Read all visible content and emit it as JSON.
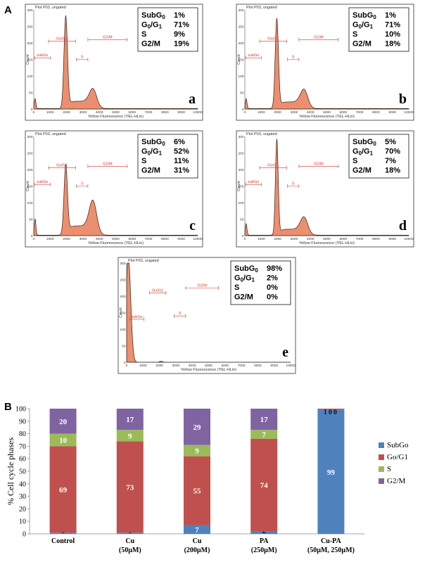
{
  "panel_a_label": "A",
  "panel_b_label": "B",
  "colors": {
    "histogram_fill": "#eb8f70",
    "gate": "#d9342b",
    "subgo": "#4f81bd",
    "go_g1": "#c0504d",
    "s": "#9bbb59",
    "g2m": "#8064a2"
  },
  "histograms": [
    {
      "letter": "a",
      "plot_title": "Plot P03, ungated",
      "x_label": "Yellow Fluorescence (YEL-HLin)",
      "y_label": "Count",
      "y_ticks": [
        "0",
        "50",
        "100",
        "150",
        "200",
        "250",
        "300"
      ],
      "x_ticks": [
        "0",
        "1000",
        "2000",
        "3000",
        "4000",
        "5000",
        "6000",
        "7000",
        "8000",
        "9000",
        "10000"
      ],
      "gates": [
        "subGo",
        "Go/G1",
        "S",
        "G2/M"
      ],
      "stats": [
        {
          "label": "SubG0",
          "value": "1%"
        },
        {
          "label": "G0/G1",
          "value": "71%"
        },
        {
          "label": "S",
          "value": "9%"
        },
        {
          "label": "G2/M",
          "value": "19%"
        }
      ]
    },
    {
      "letter": "b",
      "plot_title": "Plot P03, ungated",
      "x_label": "Yellow Fluorescence (YEL-HLin)",
      "y_label": "Count",
      "y_ticks": [
        "0",
        "50",
        "100",
        "150",
        "200",
        "250",
        "300"
      ],
      "x_ticks": [
        "0",
        "1000",
        "2000",
        "3000",
        "4000",
        "5000",
        "6000",
        "7000",
        "8000",
        "9000",
        "10000"
      ],
      "gates": [
        "subGo",
        "Go/G1",
        "S",
        "G2/M"
      ],
      "stats": [
        {
          "label": "SubG0",
          "value": "1%"
        },
        {
          "label": "G0/G1",
          "value": "71%"
        },
        {
          "label": "S",
          "value": "10%"
        },
        {
          "label": "G2/M",
          "value": "18%"
        }
      ]
    },
    {
      "letter": "c",
      "plot_title": "Plot P03, ungated",
      "x_label": "Yellow Fluorescence (YEL-HLin)",
      "y_label": "Count",
      "y_ticks": [
        "0",
        "50",
        "100",
        "150",
        "200",
        "250",
        "300"
      ],
      "x_ticks": [
        "0",
        "1000",
        "2000",
        "3000",
        "4000",
        "5000",
        "6000",
        "7000",
        "8000",
        "9000",
        "10000"
      ],
      "gates": [
        "subGo",
        "Go/G1",
        "S",
        "G2/M"
      ],
      "stats": [
        {
          "label": "SubG0",
          "value": "6%"
        },
        {
          "label": "G0/G1",
          "value": "52%"
        },
        {
          "label": "S",
          "value": "11%"
        },
        {
          "label": "G2/M",
          "value": "31%"
        }
      ]
    },
    {
      "letter": "d",
      "plot_title": "Plot P03, ungated",
      "x_label": "Yellow Fluorescence (YEL-HLin)",
      "y_label": "Count",
      "y_ticks": [
        "0",
        "50",
        "100",
        "150",
        "200",
        "250",
        "300"
      ],
      "x_ticks": [
        "0",
        "1000",
        "2000",
        "3000",
        "4000",
        "5000",
        "6000",
        "7000",
        "8000",
        "9000",
        "10000"
      ],
      "gates": [
        "subGo",
        "Go/G1",
        "S",
        "G2/M"
      ],
      "stats": [
        {
          "label": "SubG0",
          "value": "5%"
        },
        {
          "label": "G0/G1",
          "value": "70%"
        },
        {
          "label": "S",
          "value": "7%"
        },
        {
          "label": "G2/M",
          "value": "18%"
        }
      ]
    },
    {
      "letter": "e",
      "plot_title": "Plot P03, ungated",
      "x_label": "Yellow Fluorescence (YEL-HLin)",
      "y_label": "Count",
      "y_ticks": [
        "0",
        "50",
        "100",
        "150",
        "200",
        "250",
        "300"
      ],
      "x_ticks": [
        "0",
        "1000",
        "2000",
        "3000",
        "4000",
        "5000",
        "6000",
        "7000",
        "8000",
        "9000",
        "10000"
      ],
      "gates": [
        "subGo",
        "Go/G1",
        "S",
        "G2/M"
      ],
      "stats": [
        {
          "label": "SubG0",
          "value": "98%"
        },
        {
          "label": "G0/G1",
          "value": "2%"
        },
        {
          "label": "S",
          "value": "0%"
        },
        {
          "label": "G2/M",
          "value": "0%"
        }
      ]
    }
  ],
  "chart_data": {
    "type": "bar",
    "stacked": true,
    "title": "",
    "xlabel": "",
    "ylabel": "% Cell cycle phases",
    "ylim": [
      0,
      100
    ],
    "y_ticks": [
      0,
      10,
      20,
      30,
      40,
      50,
      60,
      70,
      80,
      90,
      100
    ],
    "categories": [
      {
        "line1": "Control",
        "line2": ""
      },
      {
        "line1": "Cu",
        "line2": "(50µM)"
      },
      {
        "line1": "Cu",
        "line2": "(200µM)"
      },
      {
        "line1": "PA",
        "line2": "(250µM)"
      },
      {
        "line1": "Cu-PA",
        "line2": "(50µM, 250µM)"
      }
    ],
    "series": [
      {
        "name": "SubGo",
        "color_key": "subgo",
        "values": [
          1,
          1,
          7,
          2,
          99
        ],
        "labels": [
          "1",
          "1",
          "7",
          "2",
          "99"
        ]
      },
      {
        "name": "Go/G1",
        "color_key": "go_g1",
        "values": [
          69,
          73,
          55,
          74,
          1
        ],
        "labels": [
          "69",
          "73",
          "55",
          "74",
          "1"
        ]
      },
      {
        "name": "S",
        "color_key": "s",
        "values": [
          10,
          9,
          9,
          7,
          0
        ],
        "labels": [
          "10",
          "9",
          "9",
          "7",
          "0"
        ]
      },
      {
        "name": "G2/M",
        "color_key": "g2m",
        "values": [
          20,
          17,
          29,
          17,
          0
        ],
        "labels": [
          "20",
          "17",
          "29",
          "17",
          "0"
        ]
      }
    ],
    "legend_position": "right"
  }
}
